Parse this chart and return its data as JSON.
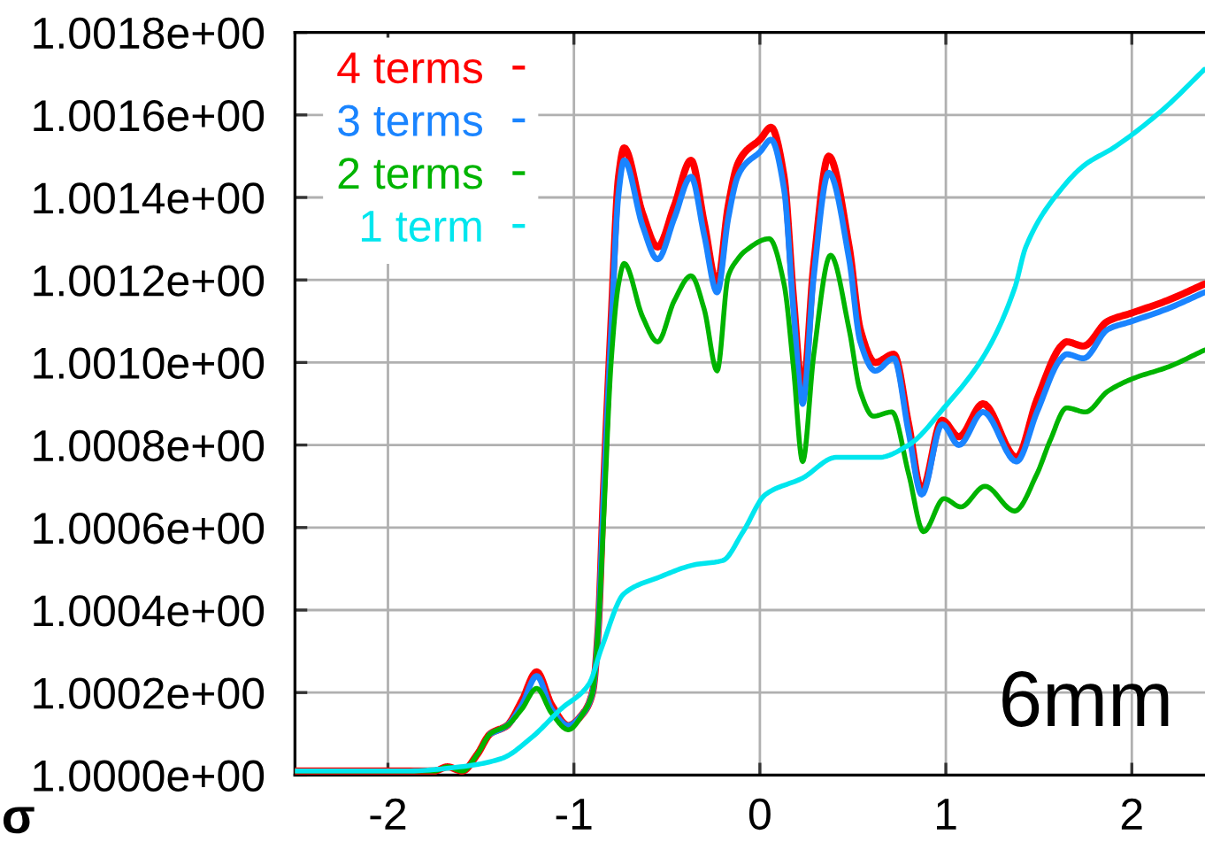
{
  "chart_data": {
    "type": "line",
    "xlabel": "σ",
    "annotations": [
      "6mm"
    ],
    "xlim": [
      -2.5,
      2.4
    ],
    "xticks": [
      -2,
      -1,
      0,
      1,
      2
    ],
    "ylim": [
      1.0,
      1.0018
    ],
    "yticks": [
      {
        "value": 1.0,
        "label": "1.0000e+00"
      },
      {
        "value": 1.0002,
        "label": "1.0002e+00"
      },
      {
        "value": 1.0004,
        "label": "1.0004e+00"
      },
      {
        "value": 1.0006,
        "label": "1.0006e+00"
      },
      {
        "value": 1.0008,
        "label": "1.0008e+00"
      },
      {
        "value": 1.001,
        "label": "1.0010e+00"
      },
      {
        "value": 1.0012,
        "label": "1.0012e+00"
      },
      {
        "value": 1.0014,
        "label": "1.0014e+00"
      },
      {
        "value": 1.0016,
        "label": "1.0016e+00"
      },
      {
        "value": 1.0018,
        "label": "1.0018e+00"
      }
    ],
    "grid": true,
    "legend": "top left",
    "series": [
      {
        "name": "4 terms",
        "color": "#ff0000",
        "x": [
          -2.5,
          -1.9,
          -1.75,
          -1.68,
          -1.6,
          -1.52,
          -1.45,
          -1.36,
          -1.28,
          -1.2,
          -1.12,
          -1.03,
          -0.95,
          -0.9,
          -0.87,
          -0.84,
          -0.8,
          -0.76,
          -0.73,
          -0.63,
          -0.55,
          -0.46,
          -0.37,
          -0.3,
          -0.23,
          -0.17,
          -0.12,
          -0.08,
          0.0,
          0.06,
          0.13,
          0.18,
          0.23,
          0.29,
          0.37,
          0.48,
          0.54,
          0.62,
          0.72,
          0.8,
          0.87,
          0.98,
          1.07,
          1.2,
          1.38,
          1.49,
          1.62,
          1.65,
          1.74,
          1.87,
          2.0,
          2.19,
          2.39
        ],
        "values": [
          1.00001,
          1.00001,
          1.00001,
          1.00002,
          1.00001,
          1.00005,
          1.0001,
          1.00012,
          1.00018,
          1.00025,
          1.00017,
          1.00012,
          1.00015,
          1.0002,
          1.00035,
          1.0007,
          1.0011,
          1.00145,
          1.00152,
          1.00136,
          1.00128,
          1.00138,
          1.00149,
          1.00134,
          1.00119,
          1.00138,
          1.00148,
          1.00151,
          1.00154,
          1.00157,
          1.00145,
          1.00116,
          1.00093,
          1.00124,
          1.0015,
          1.00128,
          1.00108,
          1.001,
          1.00102,
          1.00085,
          1.00069,
          1.00086,
          1.00082,
          1.0009,
          1.00077,
          1.00091,
          1.00104,
          1.00105,
          1.00104,
          1.0011,
          1.00112,
          1.00115,
          1.00119
        ]
      },
      {
        "name": "3 terms",
        "color": "#1a84ff",
        "x": [
          -1.45,
          -1.36,
          -1.28,
          -1.2,
          -1.12,
          -1.03,
          -0.95,
          -0.9,
          -0.87,
          -0.84,
          -0.8,
          -0.76,
          -0.73,
          -0.63,
          -0.55,
          -0.46,
          -0.37,
          -0.3,
          -0.23,
          -0.17,
          -0.12,
          -0.08,
          0.0,
          0.06,
          0.13,
          0.18,
          0.23,
          0.29,
          0.37,
          0.48,
          0.54,
          0.62,
          0.72,
          0.8,
          0.87,
          0.98,
          1.07,
          1.2,
          1.38,
          1.49,
          1.62,
          1.65,
          1.74,
          1.87,
          2.0,
          2.19,
          2.39
        ],
        "values": [
          1.0001,
          1.00012,
          1.00017,
          1.00024,
          1.00016,
          1.00012,
          1.00015,
          1.0002,
          1.00035,
          1.00068,
          1.00107,
          1.00141,
          1.00149,
          1.00133,
          1.00125,
          1.00135,
          1.00145,
          1.00131,
          1.00117,
          1.00135,
          1.00145,
          1.00148,
          1.00151,
          1.00154,
          1.00142,
          1.00113,
          1.0009,
          1.00121,
          1.00146,
          1.00125,
          1.00105,
          1.00098,
          1.00101,
          1.00083,
          1.00068,
          1.00085,
          1.0008,
          1.00088,
          1.00076,
          1.00088,
          1.00101,
          1.00102,
          1.00101,
          1.00108,
          1.0011,
          1.00113,
          1.00117
        ]
      },
      {
        "name": "2 terms",
        "color": "#00b400",
        "x": [
          -2.5,
          -1.9,
          -1.75,
          -1.68,
          -1.6,
          -1.52,
          -1.45,
          -1.36,
          -1.28,
          -1.2,
          -1.12,
          -1.03,
          -0.95,
          -0.9,
          -0.87,
          -0.84,
          -0.8,
          -0.76,
          -0.73,
          -0.63,
          -0.55,
          -0.46,
          -0.37,
          -0.3,
          -0.23,
          -0.17,
          -0.12,
          -0.08,
          0.05,
          0.13,
          0.18,
          0.23,
          0.29,
          0.38,
          0.48,
          0.54,
          0.61,
          0.71,
          0.8,
          0.88,
          0.99,
          1.08,
          1.21,
          1.37,
          1.49,
          1.56,
          1.65,
          1.75,
          1.87,
          2.0,
          2.2,
          2.39
        ],
        "values": [
          1.00001,
          1.00001,
          1.00001,
          1.00002,
          1.00001,
          1.00005,
          1.0001,
          1.00012,
          1.00016,
          1.00021,
          1.00015,
          1.00011,
          1.00015,
          1.0002,
          1.00035,
          1.00062,
          1.001,
          1.00119,
          1.00124,
          1.00111,
          1.00105,
          1.00115,
          1.00121,
          1.00113,
          1.00098,
          1.00121,
          1.00125,
          1.00127,
          1.0013,
          1.00119,
          1.00099,
          1.00076,
          1.00102,
          1.00126,
          1.00108,
          1.00093,
          1.00087,
          1.00088,
          1.00073,
          1.00059,
          1.00067,
          1.00065,
          1.0007,
          1.00064,
          1.00073,
          1.00081,
          1.00089,
          1.00088,
          1.00093,
          1.00096,
          1.00099,
          1.00103
        ]
      },
      {
        "name": "1 term",
        "color": "#00e6ee",
        "x": [
          -2.5,
          -1.9,
          -1.61,
          -1.39,
          -1.23,
          -1.07,
          -0.92,
          -0.85,
          -0.73,
          -0.54,
          -0.35,
          -0.2,
          -0.09,
          0.03,
          0.23,
          0.41,
          0.64,
          0.8,
          0.99,
          1.21,
          1.37,
          1.43,
          1.62,
          1.75,
          1.9,
          2.16,
          2.39
        ],
        "values": [
          1.00001,
          1.00001,
          1.00002,
          1.00004,
          1.00009,
          1.00016,
          1.00022,
          1.00031,
          1.00044,
          1.00048,
          1.00051,
          1.00052,
          1.00059,
          1.00068,
          1.00072,
          1.00077,
          1.00077,
          1.0008,
          1.00089,
          1.00102,
          1.00118,
          1.00128,
          1.00142,
          1.00148,
          1.00152,
          1.00161,
          1.00171
        ]
      }
    ]
  }
}
